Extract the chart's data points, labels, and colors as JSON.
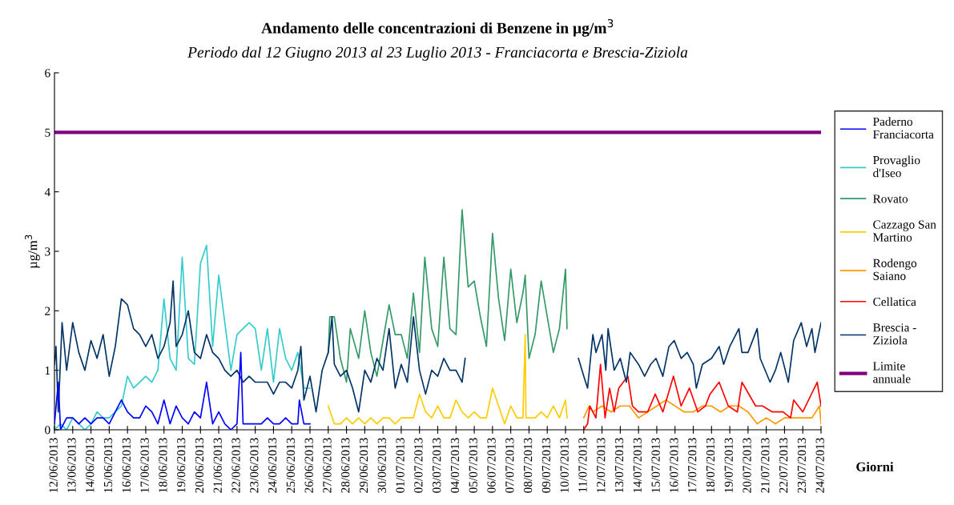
{
  "chart_data": {
    "type": "line",
    "title": "Andamento delle concentrazioni di Benzene in µg/m$^{3}$",
    "subtitle": "Periodo dal 12 Giugno 2013 al 23 Luglio 2013 - Franciacorta e Brescia-Ziziola",
    "ylabel": "µg/m$^{3}$",
    "xlabel": "Giorni",
    "xlim": [
      "2013-06-12",
      "2013-07-24"
    ],
    "ylim": [
      0,
      6
    ],
    "yticks": [
      0,
      1,
      2,
      3,
      4,
      5,
      6
    ],
    "xticks": [
      {
        "value": "2013-06-12",
        "label": "12/06/2013"
      },
      {
        "value": "2013-06-13",
        "label": "13/06/2013"
      },
      {
        "value": "2013-06-14",
        "label": "14/06/2013"
      },
      {
        "value": "2013-06-15",
        "label": "15/06/2013"
      },
      {
        "value": "2013-06-16",
        "label": "16/06/2013"
      },
      {
        "value": "2013-06-17",
        "label": "17/06/2013"
      },
      {
        "value": "2013-06-18",
        "label": "18/06/2013"
      },
      {
        "value": "2013-06-19",
        "label": "19/06/2013"
      },
      {
        "value": "2013-06-20",
        "label": "20/06/2013"
      },
      {
        "value": "2013-06-21",
        "label": "21/06/2013"
      },
      {
        "value": "2013-06-22",
        "label": "22/06/2013"
      },
      {
        "value": "2013-06-23",
        "label": "23/06/2013"
      },
      {
        "value": "2013-06-24",
        "label": "24/06/2013"
      },
      {
        "value": "2013-06-25",
        "label": "25/06/2013"
      },
      {
        "value": "2013-06-26",
        "label": "26/06/2013"
      },
      {
        "value": "2013-06-27",
        "label": "27/06/2013"
      },
      {
        "value": "2013-06-28",
        "label": "28/06/2013"
      },
      {
        "value": "2013-06-29",
        "label": "29/06/2013"
      },
      {
        "value": "2013-06-30",
        "label": "30/06/2013"
      },
      {
        "value": "2013-07-01",
        "label": "01/07/2013"
      },
      {
        "value": "2013-07-02",
        "label": "02/07/2013"
      },
      {
        "value": "2013-07-03",
        "label": "03/07/2013"
      },
      {
        "value": "2013-07-04",
        "label": "04/07/2013"
      },
      {
        "value": "2013-07-05",
        "label": "05/07/2013"
      },
      {
        "value": "2013-07-06",
        "label": "06/07/2013"
      },
      {
        "value": "2013-07-07",
        "label": "07/07/2013"
      },
      {
        "value": "2013-07-08",
        "label": "08/07/2013"
      },
      {
        "value": "2013-07-09",
        "label": "09/07/2013"
      },
      {
        "value": "2013-07-10",
        "label": "10/07/2013"
      },
      {
        "value": "2013-07-11",
        "label": "11/07/2013"
      },
      {
        "value": "2013-07-12",
        "label": "12/07/2013"
      },
      {
        "value": "2013-07-13",
        "label": "13/07/2013"
      },
      {
        "value": "2013-07-14",
        "label": "14/07/2013"
      },
      {
        "value": "2013-07-15",
        "label": "15/07/2013"
      },
      {
        "value": "2013-07-16",
        "label": "16/07/2013"
      },
      {
        "value": "2013-07-17",
        "label": "17/07/2013"
      },
      {
        "value": "2013-07-18",
        "label": "18/07/2013"
      },
      {
        "value": "2013-07-19",
        "label": "19/07/2013"
      },
      {
        "value": "2013-07-20",
        "label": "20/07/2013"
      },
      {
        "value": "2013-07-21",
        "label": "21/07/2013"
      },
      {
        "value": "2013-07-22",
        "label": "22/07/2013"
      },
      {
        "value": "2013-07-23",
        "label": "23/07/2013"
      },
      {
        "value": "2013-07-24",
        "label": "24/07/2013"
      }
    ],
    "grid": false,
    "legend": "right",
    "marker": "none",
    "line_style": "solid",
    "series": [
      {
        "name": "Paderno Franciacorta",
        "color": "#0000ff",
        "x": [
          "2013-06-12T00:00",
          "2013-06-12T05:00",
          "2013-06-12T08:00",
          "2013-06-12T16:00",
          "2013-06-13T00:00",
          "2013-06-13T08:00",
          "2013-06-13T16:00",
          "2013-06-14T00:00",
          "2013-06-14T08:00",
          "2013-06-14T16:00",
          "2013-06-15T00:00",
          "2013-06-15T08:00",
          "2013-06-15T16:00",
          "2013-06-16T00:00",
          "2013-06-16T08:00",
          "2013-06-16T16:00",
          "2013-06-17T00:00",
          "2013-06-17T08:00",
          "2013-06-17T16:00",
          "2013-06-18T00:00",
          "2013-06-18T08:00",
          "2013-06-18T16:00",
          "2013-06-19T00:00",
          "2013-06-19T08:00",
          "2013-06-19T16:00",
          "2013-06-20T00:00",
          "2013-06-20T08:00",
          "2013-06-20T16:00",
          "2013-06-21T00:00",
          "2013-06-21T08:00",
          "2013-06-21T16:00",
          "2013-06-22T00:00",
          "2013-06-22T05:00",
          "2013-06-22T08:00",
          "2013-06-22T16:00",
          "2013-06-23T00:00",
          "2013-06-23T08:00",
          "2013-06-23T16:00",
          "2013-06-24T00:00",
          "2013-06-24T08:00",
          "2013-06-24T16:00",
          "2013-06-25T00:00",
          "2013-06-25T08:00",
          "2013-06-25T10:00",
          "2013-06-25T16:00",
          "2013-06-26T00:00"
        ],
        "values": [
          0.1,
          0.8,
          0.0,
          0.2,
          0.2,
          0.1,
          0.2,
          0.1,
          0.2,
          0.2,
          0.1,
          0.3,
          0.5,
          0.3,
          0.2,
          0.2,
          0.4,
          0.3,
          0.1,
          0.5,
          0.1,
          0.4,
          0.2,
          0.1,
          0.3,
          0.2,
          0.8,
          0.1,
          0.3,
          0.1,
          0.0,
          0.1,
          1.3,
          0.1,
          0.1,
          0.1,
          0.1,
          0.2,
          0.1,
          0.1,
          0.2,
          0.1,
          0.1,
          0.5,
          0.1,
          0.1
        ]
      },
      {
        "name": "Provaglio d'Iseo",
        "color": "#33cccc",
        "x": [
          "2013-06-12T00:00",
          "2013-06-12T08:00",
          "2013-06-12T16:00",
          "2013-06-13T00:00",
          "2013-06-13T08:00",
          "2013-06-13T16:00",
          "2013-06-14T00:00",
          "2013-06-14T08:00",
          "2013-06-14T16:00",
          "2013-06-15T00:00",
          "2013-06-15T08:00",
          "2013-06-15T16:00",
          "2013-06-16T00:00",
          "2013-06-16T08:00",
          "2013-06-16T16:00",
          "2013-06-17T00:00",
          "2013-06-17T08:00",
          "2013-06-17T16:00",
          "2013-06-18T00:00",
          "2013-06-18T08:00",
          "2013-06-18T16:00",
          "2013-06-19T00:00",
          "2013-06-19T08:00",
          "2013-06-19T16:00",
          "2013-06-20T00:00",
          "2013-06-20T08:00",
          "2013-06-20T16:00",
          "2013-06-21T00:00",
          "2013-06-21T08:00",
          "2013-06-21T16:00",
          "2013-06-22T00:00",
          "2013-06-22T08:00",
          "2013-06-22T16:00",
          "2013-06-23T00:00",
          "2013-06-23T08:00",
          "2013-06-23T16:00",
          "2013-06-24T00:00",
          "2013-06-24T08:00",
          "2013-06-24T16:00",
          "2013-06-25T00:00",
          "2013-06-25T08:00",
          "2013-06-25T16:00",
          "2013-06-26T00:00"
        ],
        "values": [
          0.0,
          0.1,
          0.0,
          0.2,
          0.1,
          0.0,
          0.1,
          0.3,
          0.2,
          0.2,
          0.3,
          0.4,
          0.9,
          0.7,
          0.8,
          0.9,
          0.8,
          1.0,
          2.2,
          1.2,
          1.0,
          2.9,
          1.2,
          1.1,
          2.8,
          3.1,
          1.4,
          2.6,
          1.8,
          1.0,
          1.6,
          1.7,
          1.8,
          1.7,
          1.0,
          1.7,
          0.8,
          1.7,
          1.2,
          1.0,
          1.3,
          0.7,
          0.7
        ]
      },
      {
        "name": "Rovato",
        "color": "#339966",
        "x": [
          "2013-06-27T00:00",
          "2013-06-27T02:00",
          "2013-06-27T08:00",
          "2013-06-27T16:00",
          "2013-06-28T00:00",
          "2013-06-28T05:00",
          "2013-06-28T16:00",
          "2013-06-29T00:00",
          "2013-06-29T08:00",
          "2013-06-29T16:00",
          "2013-06-30T00:00",
          "2013-06-30T08:00",
          "2013-06-30T16:00",
          "2013-07-01T00:00",
          "2013-07-01T08:00",
          "2013-07-01T16:00",
          "2013-07-02T00:00",
          "2013-07-02T07:00",
          "2013-07-02T16:00",
          "2013-07-03T00:00",
          "2013-07-03T08:00",
          "2013-07-03T16:00",
          "2013-07-04T00:00",
          "2013-07-04T08:00",
          "2013-07-04T16:00",
          "2013-07-05T00:00",
          "2013-07-05T08:00",
          "2013-07-05T16:00",
          "2013-07-06T00:00",
          "2013-07-06T08:00",
          "2013-07-06T16:00",
          "2013-07-07T00:00",
          "2013-07-07T08:00",
          "2013-07-07T16:00",
          "2013-07-07T19:00",
          "2013-07-08T00:00",
          "2013-07-08T08:00",
          "2013-07-08T16:00",
          "2013-07-09T00:00",
          "2013-07-09T08:00",
          "2013-07-09T16:00",
          "2013-07-10T00:00",
          "2013-07-10T02:00"
        ],
        "values": [
          1.3,
          1.9,
          1.9,
          1.2,
          0.8,
          1.7,
          1.2,
          2.0,
          1.3,
          0.9,
          1.5,
          2.1,
          1.6,
          1.6,
          1.2,
          2.3,
          1.3,
          2.9,
          1.7,
          1.4,
          2.9,
          1.7,
          1.6,
          3.7,
          2.4,
          2.5,
          1.9,
          1.4,
          3.3,
          2.2,
          1.5,
          2.7,
          1.8,
          2.3,
          2.6,
          1.2,
          1.6,
          2.5,
          1.9,
          1.3,
          1.7,
          2.7,
          1.7
        ]
      },
      {
        "name": "Cazzago San Martino",
        "color": "#ffcc00",
        "x": [
          "2013-06-27T00:00",
          "2013-06-27T08:00",
          "2013-06-27T16:00",
          "2013-06-28T00:00",
          "2013-06-28T08:00",
          "2013-06-28T16:00",
          "2013-06-29T00:00",
          "2013-06-29T08:00",
          "2013-06-29T16:00",
          "2013-06-30T00:00",
          "2013-06-30T08:00",
          "2013-06-30T16:00",
          "2013-07-01T00:00",
          "2013-07-01T08:00",
          "2013-07-01T16:00",
          "2013-07-02T00:00",
          "2013-07-02T08:00",
          "2013-07-02T16:00",
          "2013-07-03T00:00",
          "2013-07-03T08:00",
          "2013-07-03T16:00",
          "2013-07-04T00:00",
          "2013-07-04T08:00",
          "2013-07-04T16:00",
          "2013-07-05T00:00",
          "2013-07-05T08:00",
          "2013-07-05T16:00",
          "2013-07-06T00:00",
          "2013-07-06T08:00",
          "2013-07-06T16:00",
          "2013-07-07T00:00",
          "2013-07-07T08:00",
          "2013-07-07T16:00",
          "2013-07-07T19:00",
          "2013-07-07T20:00",
          "2013-07-08T00:00",
          "2013-07-08T08:00",
          "2013-07-08T16:00",
          "2013-07-09T00:00",
          "2013-07-09T08:00",
          "2013-07-09T16:00",
          "2013-07-10T00:00",
          "2013-07-10T02:00"
        ],
        "values": [
          0.4,
          0.1,
          0.1,
          0.2,
          0.1,
          0.2,
          0.1,
          0.2,
          0.1,
          0.2,
          0.2,
          0.1,
          0.2,
          0.2,
          0.2,
          0.6,
          0.3,
          0.2,
          0.4,
          0.2,
          0.2,
          0.5,
          0.3,
          0.2,
          0.3,
          0.2,
          0.2,
          0.7,
          0.4,
          0.1,
          0.4,
          0.2,
          0.2,
          1.6,
          0.2,
          0.2,
          0.2,
          0.3,
          0.2,
          0.4,
          0.2,
          0.5,
          0.2
        ]
      },
      {
        "name": "Rodengo Saiano",
        "color": "#ff9900",
        "x": [
          "2013-07-11T00:00",
          "2013-07-11T07:00",
          "2013-07-11T12:00",
          "2013-07-12T00:00",
          "2013-07-12T12:00",
          "2013-07-13T00:00",
          "2013-07-13T12:00",
          "2013-07-14T00:00",
          "2013-07-14T12:00",
          "2013-07-15T00:00",
          "2013-07-15T12:00",
          "2013-07-16T00:00",
          "2013-07-16T12:00",
          "2013-07-17T00:00",
          "2013-07-17T12:00",
          "2013-07-18T00:00",
          "2013-07-18T12:00",
          "2013-07-19T00:00",
          "2013-07-19T12:00",
          "2013-07-20T00:00",
          "2013-07-20T12:00",
          "2013-07-21T00:00",
          "2013-07-21T12:00",
          "2013-07-22T00:00",
          "2013-07-22T12:00",
          "2013-07-23T00:00",
          "2013-07-23T12:00",
          "2013-07-23T22:00",
          "2013-07-24T00:00"
        ],
        "values": [
          0.2,
          0.4,
          0.3,
          0.4,
          0.3,
          0.4,
          0.4,
          0.2,
          0.3,
          0.4,
          0.5,
          0.4,
          0.3,
          0.3,
          0.4,
          0.4,
          0.3,
          0.4,
          0.4,
          0.3,
          0.1,
          0.2,
          0.1,
          0.2,
          0.2,
          0.2,
          0.2,
          0.4,
          0.1
        ]
      },
      {
        "name": "Cellatica",
        "color": "#ff0000",
        "x": [
          "2013-07-11T00:00",
          "2013-07-11T05:00",
          "2013-07-11T08:00",
          "2013-07-11T16:00",
          "2013-07-11T22:00",
          "2013-07-12T04:00",
          "2013-07-12T10:00",
          "2013-07-12T16:00",
          "2013-07-12T22:00",
          "2013-07-13T10:00",
          "2013-07-13T16:00",
          "2013-07-14T00:00",
          "2013-07-14T12:00",
          "2013-07-14T22:00",
          "2013-07-15T08:00",
          "2013-07-15T22:00",
          "2013-07-16T08:00",
          "2013-07-16T19:00",
          "2013-07-17T06:00",
          "2013-07-17T16:00",
          "2013-07-17T22:00",
          "2013-07-18T10:00",
          "2013-07-18T22:00",
          "2013-07-19T10:00",
          "2013-07-19T16:00",
          "2013-07-20T10:00",
          "2013-07-20T19:00",
          "2013-07-21T08:00",
          "2013-07-21T22:00",
          "2013-07-22T08:00",
          "2013-07-22T12:00",
          "2013-07-23T00:00",
          "2013-07-23T19:00",
          "2013-07-24T00:00"
        ],
        "values": [
          0.0,
          0.1,
          0.4,
          0.2,
          1.1,
          0.2,
          0.7,
          0.3,
          0.7,
          0.9,
          0.4,
          0.3,
          0.3,
          0.6,
          0.3,
          0.9,
          0.4,
          0.7,
          0.3,
          0.4,
          0.6,
          0.8,
          0.4,
          0.3,
          0.8,
          0.4,
          0.4,
          0.3,
          0.3,
          0.2,
          0.5,
          0.3,
          0.8,
          0.4
        ]
      },
      {
        "name": "Brescia - Ziziola",
        "color": "#003366",
        "x": [
          "2013-06-12T00:00",
          "2013-06-12T02:00",
          "2013-06-12T05:00",
          "2013-06-12T10:00",
          "2013-06-12T16:00",
          "2013-06-13T00:00",
          "2013-06-13T08:00",
          "2013-06-13T16:00",
          "2013-06-14T00:00",
          "2013-06-14T08:00",
          "2013-06-14T16:00",
          "2013-06-15T00:00",
          "2013-06-15T08:00",
          "2013-06-15T16:00",
          "2013-06-16T00:00",
          "2013-06-16T08:00",
          "2013-06-16T16:00",
          "2013-06-17T00:00",
          "2013-06-17T08:00",
          "2013-06-17T16:00",
          "2013-06-18T00:00",
          "2013-06-18T08:00",
          "2013-06-18T12:00",
          "2013-06-18T16:00",
          "2013-06-19T00:00",
          "2013-06-19T08:00",
          "2013-06-19T16:00",
          "2013-06-20T00:00",
          "2013-06-20T08:00",
          "2013-06-20T16:00",
          "2013-06-21T00:00",
          "2013-06-21T08:00",
          "2013-06-21T16:00",
          "2013-06-22T00:00",
          "2013-06-22T08:00",
          "2013-06-22T16:00",
          "2013-06-23T00:00",
          "2013-06-23T08:00",
          "2013-06-23T16:00",
          "2013-06-24T00:00",
          "2013-06-24T08:00",
          "2013-06-24T16:00",
          "2013-06-25T00:00",
          "2013-06-25T08:00",
          "2013-06-25T12:00",
          "2013-06-25T16:00",
          "2013-06-26T00:00",
          "2013-06-26T08:00",
          "2013-06-26T16:00",
          "2013-06-27T00:00",
          "2013-06-27T05:00",
          "2013-06-27T08:00",
          "2013-06-27T16:00",
          "2013-06-28T00:00",
          "2013-06-28T08:00",
          "2013-06-28T16:00",
          "2013-06-29T00:00",
          "2013-06-29T08:00",
          "2013-06-29T16:00",
          "2013-06-30T00:00",
          "2013-06-30T08:00",
          "2013-06-30T16:00",
          "2013-07-01T00:00",
          "2013-07-01T08:00",
          "2013-07-01T16:00",
          "2013-07-02T00:00",
          "2013-07-02T08:00",
          "2013-07-02T16:00",
          "2013-07-03T00:00",
          "2013-07-03T08:00",
          "2013-07-03T16:00",
          "2013-07-04T00:00",
          "2013-07-04T08:00",
          "2013-07-04T12:00",
          "2013-07-07T00:00",
          "2013-07-10T17:00",
          "2013-07-11T00:00",
          "2013-07-11T05:00",
          "2013-07-11T12:00",
          "2013-07-11T16:00",
          "2013-07-12T00:00",
          "2013-07-12T05:00",
          "2013-07-12T08:00",
          "2013-07-12T16:00",
          "2013-07-13T00:00",
          "2013-07-13T08:00",
          "2013-07-13T13:00",
          "2013-07-14T00:00",
          "2013-07-14T08:00",
          "2013-07-14T16:00",
          "2013-07-14T23:00",
          "2013-07-15T08:00",
          "2013-07-15T16:00",
          "2013-07-15T23:00",
          "2013-07-16T08:00",
          "2013-07-16T16:00",
          "2013-07-17T00:00",
          "2013-07-17T04:00",
          "2013-07-17T12:00",
          "2013-07-18T00:00",
          "2013-07-18T10:00",
          "2013-07-18T16:00",
          "2013-07-19T00:00",
          "2013-07-19T12:00",
          "2013-07-19T16:00",
          "2013-07-20T00:00",
          "2013-07-20T12:00",
          "2013-07-20T16:00",
          "2013-07-21T05:00",
          "2013-07-21T12:00",
          "2013-07-21T19:00",
          "2013-07-22T05:00",
          "2013-07-22T12:00",
          "2013-07-22T22:00",
          "2013-07-23T05:00",
          "2013-07-23T12:00",
          "2013-07-23T16:00",
          "2013-07-24T00:00"
        ],
        "values": [
          1.1,
          1.4,
          0.3,
          1.8,
          1.0,
          1.8,
          1.3,
          1.0,
          1.5,
          1.2,
          1.6,
          0.9,
          1.4,
          2.2,
          2.1,
          1.7,
          1.6,
          1.4,
          1.6,
          1.2,
          1.4,
          1.8,
          2.5,
          1.4,
          1.6,
          2.0,
          1.3,
          1.2,
          1.6,
          1.3,
          1.2,
          1.0,
          0.9,
          1.0,
          0.8,
          0.9,
          0.8,
          0.8,
          0.8,
          0.6,
          0.8,
          0.8,
          0.7,
          1.0,
          1.4,
          0.5,
          0.9,
          0.3,
          1.0,
          1.3,
          1.9,
          1.1,
          0.9,
          1.0,
          0.7,
          0.3,
          1.0,
          0.8,
          1.2,
          1.0,
          1.7,
          0.7,
          1.1,
          0.8,
          1.9,
          1.0,
          0.6,
          1.0,
          0.9,
          1.2,
          1.0,
          1.0,
          0.8,
          1.2,
          null,
          1.2,
          0.9,
          0.7,
          1.6,
          1.3,
          1.6,
          1.0,
          1.7,
          1.0,
          1.2,
          0.8,
          1.3,
          1.1,
          0.9,
          1.1,
          1.2,
          0.9,
          1.4,
          1.5,
          1.2,
          1.3,
          1.1,
          0.7,
          1.1,
          1.2,
          1.4,
          1.1,
          1.4,
          1.7,
          1.3,
          1.3,
          1.7,
          1.2,
          0.8,
          1.0,
          1.3,
          0.8,
          1.5,
          1.8,
          1.4,
          1.7,
          1.3,
          1.8
        ]
      },
      {
        "name": "Limite annuale",
        "color": "#800080",
        "x": [
          "2013-06-12T00:00",
          "2013-07-24T00:00"
        ],
        "values": [
          5,
          5
        ]
      }
    ]
  }
}
